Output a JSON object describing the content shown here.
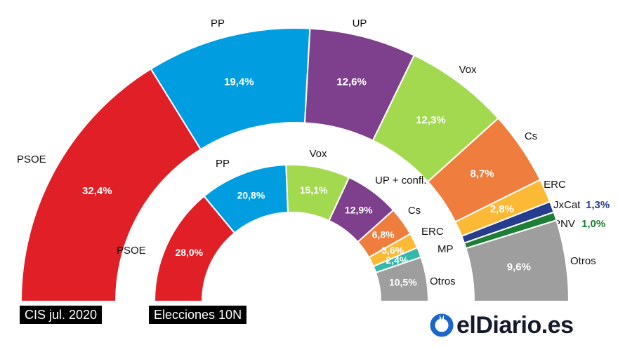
{
  "chart_data": [
    {
      "type": "pie",
      "variant": "half-donut",
      "title": "CIS jul. 2020",
      "categories": [
        "PSOE",
        "PP",
        "UP",
        "Vox",
        "Cs",
        "ERC",
        "JxCat",
        "PNV",
        "Otros"
      ],
      "values": [
        32.4,
        19.4,
        12.6,
        12.3,
        8.7,
        2.8,
        1.3,
        1.0,
        9.6
      ],
      "value_labels": [
        "32,4%",
        "19,4%",
        "12,6%",
        "12,3%",
        "8,7%",
        "2,8%",
        "1,3%",
        "1,0%",
        "9,6%"
      ],
      "colors": [
        "#e01f26",
        "#009ee0",
        "#7e3f8c",
        "#a2d94e",
        "#ee7d3e",
        "#fbb936",
        "#263c8c",
        "#1e7e34",
        "#9e9e9e"
      ]
    },
    {
      "type": "pie",
      "variant": "half-donut",
      "title": "Elecciones 10N",
      "categories": [
        "PSOE",
        "PP",
        "Vox",
        "UP + confl.",
        "Cs",
        "ERC",
        "MP",
        "Otros"
      ],
      "values": [
        28.0,
        20.8,
        15.1,
        12.9,
        6.8,
        3.6,
        2.4,
        10.5
      ],
      "value_labels": [
        "28,0%",
        "20,8%",
        "15,1%",
        "12,9%",
        "6,8%",
        "3,6%",
        "2,4%",
        "10,5%"
      ],
      "colors": [
        "#e01f26",
        "#009ee0",
        "#a2d94e",
        "#7e3f8c",
        "#ee7d3e",
        "#fbb936",
        "#36b7a7",
        "#9e9e9e"
      ]
    }
  ],
  "tags": {
    "outer": "CIS jul. 2020",
    "inner": "Elecciones 10N"
  },
  "logo": {
    "text": "elDiario.es",
    "icon": "eldiario-logo-icon"
  }
}
